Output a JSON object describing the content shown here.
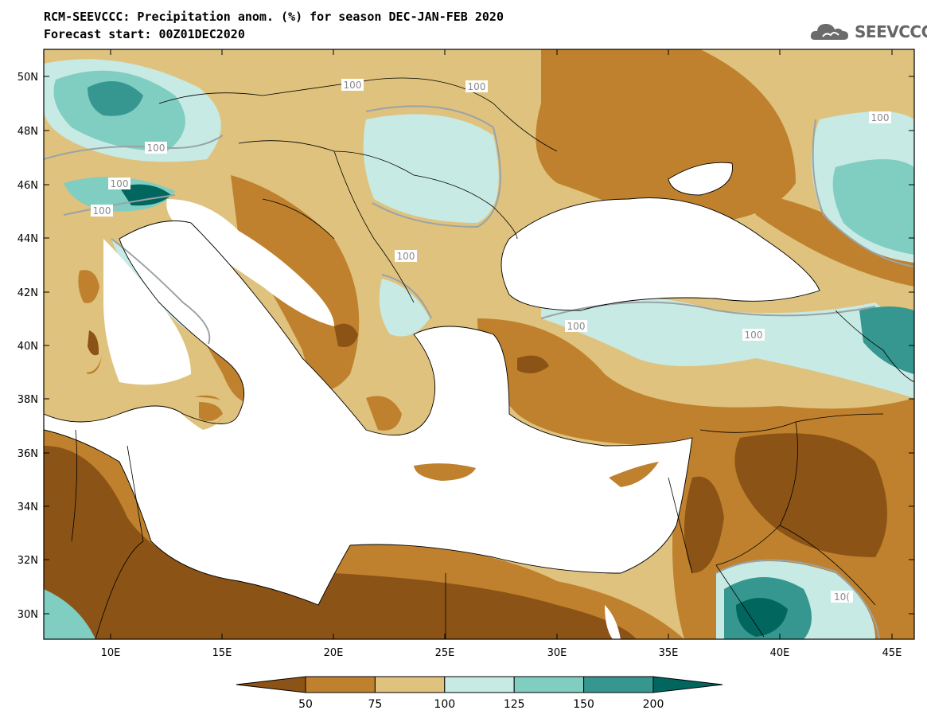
{
  "header": {
    "title": "RCM-SEEVCCC: Precipitation anom. (%) for season DEC-JAN-FEB 2020",
    "subtitle": "Forecast start: 00Z01DEC2020"
  },
  "logo": {
    "text": "SEEVCCC",
    "icon": "cloud-icon"
  },
  "axes": {
    "lat_labels": [
      "50N",
      "48N",
      "46N",
      "44N",
      "42N",
      "40N",
      "38N",
      "36N",
      "34N",
      "32N",
      "30N"
    ],
    "lon_labels": [
      "10E",
      "15E",
      "20E",
      "25E",
      "30E",
      "35E",
      "40E",
      "45E"
    ]
  },
  "contour_labels": [
    "100",
    "100",
    "100",
    "100",
    "100",
    "100",
    "100",
    "100",
    "100",
    "10("
  ],
  "colorbar": {
    "labels": [
      "50",
      "75",
      "100",
      "125",
      "150",
      "200"
    ],
    "colors": [
      "#8c5316",
      "#bf812d",
      "#dfc27d",
      "#c7eae5",
      "#80cdc1",
      "#35978f",
      "#01665e"
    ]
  },
  "palette": {
    "very_dry": "#8c5316",
    "dry": "#bf812d",
    "slightly_dry": "#dfc27d",
    "slightly_wet": "#c7eae5",
    "wet": "#80cdc1",
    "very_wet": "#35978f",
    "extreme_wet": "#01665e"
  }
}
